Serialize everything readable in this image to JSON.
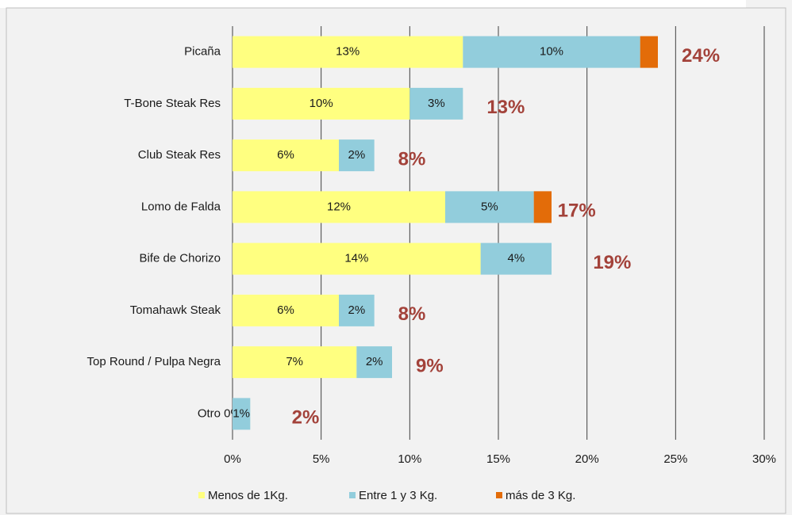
{
  "chart_data": {
    "type": "stacked-bar-horizontal",
    "categories": [
      "Picaña",
      "T-Bone Steak Res",
      "Club Steak Res",
      "Lomo de Falda",
      "Bife de Chorizo",
      "Tomahawk Steak",
      "Top Round / Pulpa Negra",
      "Otro"
    ],
    "series": [
      {
        "name": "Menos de 1Kg.",
        "color": "#ffff80",
        "values": [
          13,
          10,
          6,
          12,
          14,
          6,
          7,
          0
        ],
        "value_labels": [
          "13%",
          "10%",
          "6%",
          "12%",
          "14%",
          "6%",
          "7%",
          "0%"
        ]
      },
      {
        "name": "Entre 1 y 3 Kg.",
        "color": "#92cddc",
        "values": [
          10,
          3,
          2,
          5,
          4,
          2,
          2,
          1
        ],
        "value_labels": [
          "10%",
          "3%",
          "2%",
          "5%",
          "4%",
          "2%",
          "2%",
          "1%"
        ]
      },
      {
        "name": "más de 3 Kg.",
        "color": "#e36c09",
        "values": [
          1,
          0,
          0,
          1,
          0,
          0,
          0,
          0
        ]
      }
    ],
    "totals": [
      24,
      13,
      8,
      17,
      19,
      8,
      9,
      2
    ],
    "total_labels": [
      "24%",
      "13%",
      "8%",
      "17%",
      "19%",
      "8%",
      "9%",
      "2%"
    ],
    "xlim": [
      0,
      30
    ],
    "xticks": [
      {
        "value": 0,
        "label": "0%"
      },
      {
        "value": 5,
        "label": "5%"
      },
      {
        "value": 10,
        "label": "10%"
      },
      {
        "value": 15,
        "label": "15%"
      },
      {
        "value": 20,
        "label": "20%"
      },
      {
        "value": 25,
        "label": "25%"
      },
      {
        "value": 30,
        "label": "30%"
      }
    ],
    "grid": true,
    "legend": "bottom"
  }
}
